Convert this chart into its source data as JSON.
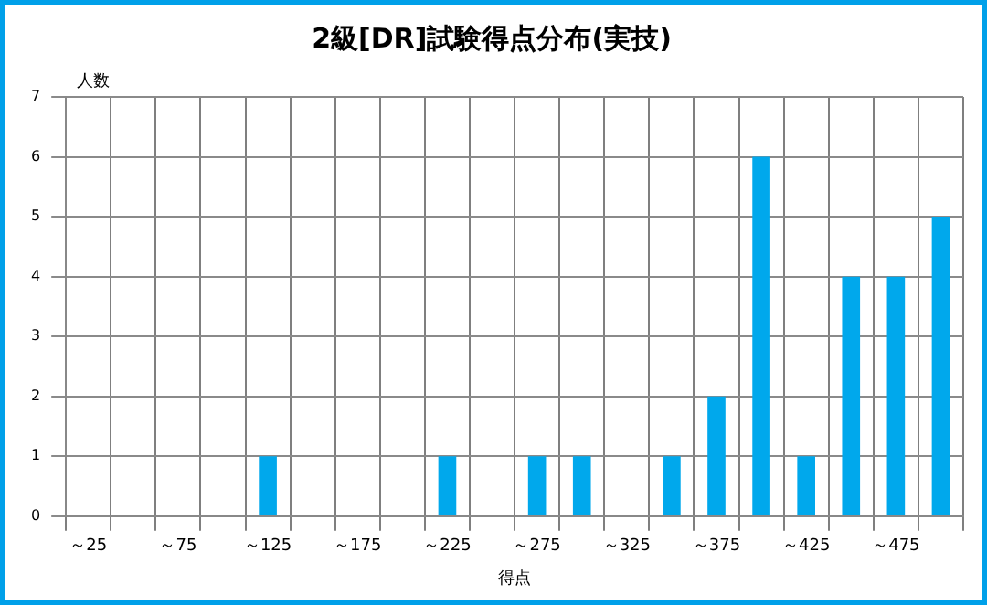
{
  "chart_data": {
    "type": "bar",
    "title": "2級[DR]試験得点分布(実技)",
    "xlabel": "得点",
    "ylabel": "人数",
    "categories": [
      "～25",
      null,
      "～75",
      null,
      "～125",
      null,
      "～175",
      null,
      "～225",
      null,
      "～275",
      null,
      "～325",
      null,
      "～375",
      null,
      "～425",
      null,
      "～475",
      null
    ],
    "values": [
      0,
      0,
      0,
      0,
      1,
      0,
      0,
      0,
      1,
      0,
      1,
      1,
      0,
      1,
      2,
      6,
      1,
      4,
      4,
      5
    ],
    "color": "#00a8ec",
    "ylim": [
      0,
      7
    ],
    "yticks": [
      0,
      1,
      2,
      3,
      4,
      5,
      6,
      7
    ],
    "grid": true,
    "legend": false
  }
}
